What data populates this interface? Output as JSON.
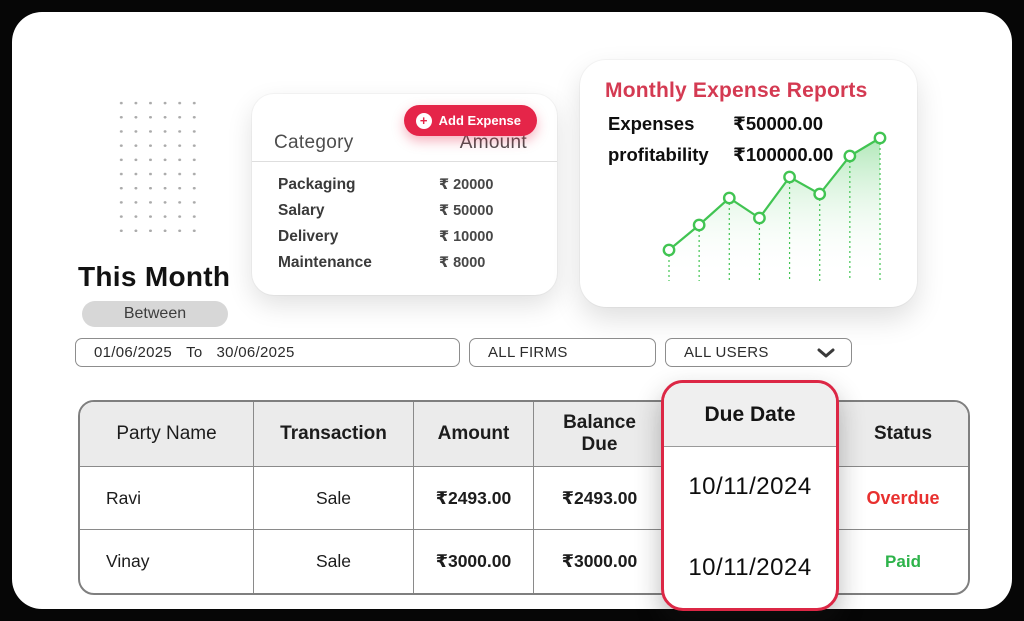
{
  "expense_card": {
    "add_button_label": "Add Expense",
    "columns": {
      "category": "Category",
      "amount": "Amount"
    },
    "items": [
      {
        "category": "Packaging",
        "amount": "₹ 20000"
      },
      {
        "category": "Salary",
        "amount": "₹ 50000"
      },
      {
        "category": "Delivery",
        "amount": "₹ 10000"
      },
      {
        "category": "Maintenance",
        "amount": "₹ 8000"
      }
    ]
  },
  "report_card": {
    "title": "Monthly Expense Reports",
    "stats": [
      {
        "label": "Expenses",
        "value": "₹50000.00"
      },
      {
        "label": "profitability",
        "value": "₹100000.00"
      }
    ]
  },
  "chart_data": {
    "type": "line",
    "title": "Monthly Expense Reports",
    "x": [
      1,
      2,
      3,
      4,
      5,
      6,
      7,
      8
    ],
    "series": [
      {
        "name": "profitability",
        "values": [
          26,
          51,
          78,
          58,
          99,
          82,
          120,
          138
        ]
      }
    ],
    "ylim": [
      0,
      150
    ],
    "note": "axes unlabeled; values are relative heights estimated from pixels",
    "legend": "none",
    "grid": "none",
    "style": {
      "line_color": "#41c452",
      "marker": "white-filled circle, green stroke",
      "drop_lines": "dotted green verticals to baseline",
      "area_fill": "green-to-transparent vertical gradient"
    }
  },
  "period": {
    "heading": "This Month",
    "badge": "Between"
  },
  "filters": {
    "date_from": "01/06/2025",
    "date_separator": "To",
    "date_to": "30/06/2025",
    "firms": "ALL FIRMS",
    "users": "ALL USERS"
  },
  "table": {
    "headers": [
      "Party Name",
      "Transaction",
      "Amount",
      "Balance Due",
      "Due Date",
      "Status"
    ],
    "rows": [
      {
        "party": "Ravi",
        "transaction": "Sale",
        "amount": "₹2493.00",
        "balance": "₹2493.00",
        "due": "10/11/2024",
        "status": "Overdue",
        "status_color": "#e8302f"
      },
      {
        "party": "Vinay",
        "transaction": "Sale",
        "amount": "₹3000.00",
        "balance": "₹3000.00",
        "due": "10/11/2024",
        "status": "Paid",
        "status_color": "#2db34a"
      }
    ]
  },
  "colors": {
    "accent_red": "#e52549",
    "title_red": "#d43a52",
    "due_card_border": "#dc2745",
    "overdue_red": "#e8302f",
    "paid_green": "#2db34a",
    "chart_green": "#41c452",
    "frame_black": "#060606"
  }
}
